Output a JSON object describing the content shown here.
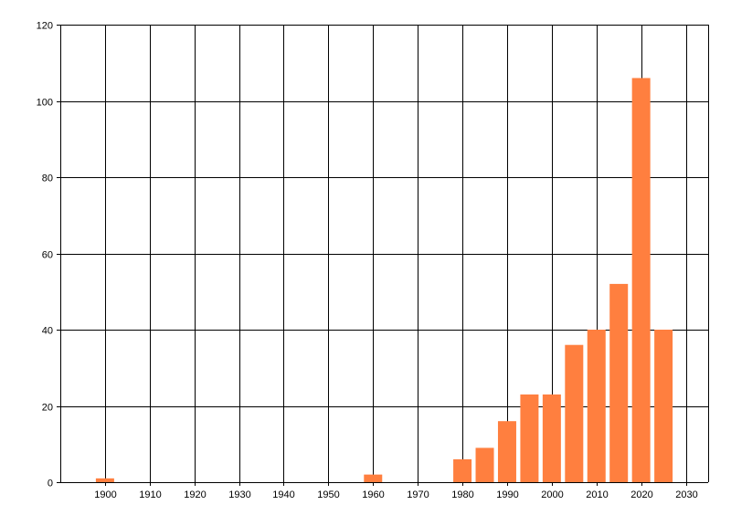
{
  "chart_data": {
    "type": "bar",
    "title": "",
    "xlabel": "",
    "ylabel": "",
    "x": [
      1900,
      1960,
      1980,
      1985,
      1990,
      1995,
      2000,
      2005,
      2010,
      2015,
      2020,
      2025
    ],
    "values": [
      1,
      2,
      6,
      9,
      16,
      23,
      23,
      36,
      40,
      52,
      106,
      40
    ],
    "xlim": [
      1890,
      2035
    ],
    "ylim": [
      0,
      120
    ],
    "xticks": [
      "1900",
      "1910",
      "1920",
      "1930",
      "1940",
      "1950",
      "1960",
      "1970",
      "1980",
      "1990",
      "2000",
      "2010",
      "2020",
      "2030"
    ],
    "yticks": [
      "0",
      "20",
      "40",
      "60",
      "80",
      "100",
      "120"
    ],
    "grid": true,
    "legend": "none",
    "colors": {
      "bar": "#ff7f3f",
      "grid": "#000000",
      "axis": "#000000"
    }
  }
}
